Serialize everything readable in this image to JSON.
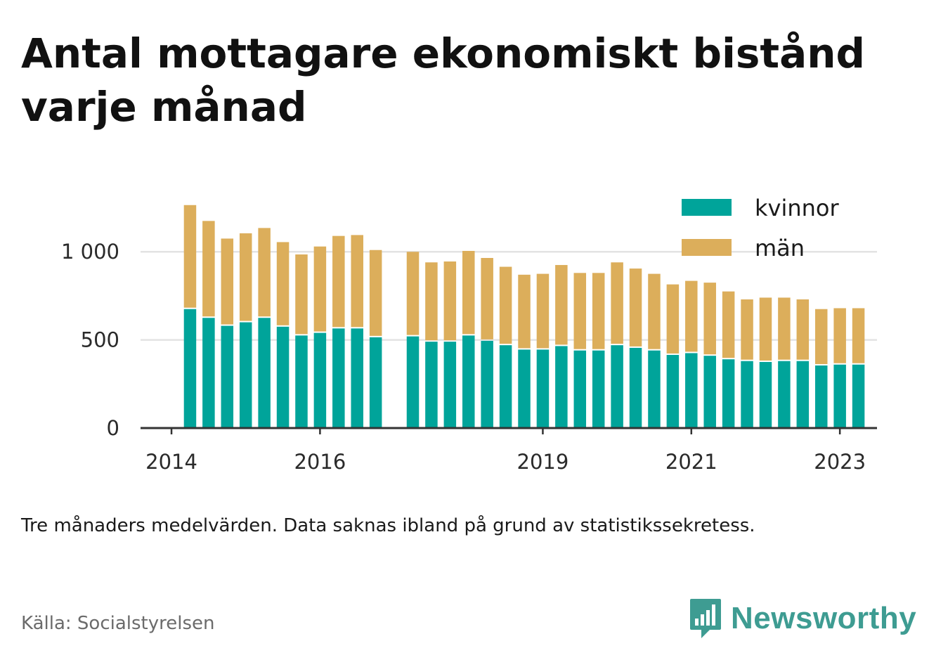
{
  "title": "Antal mottagare ekonomiskt bistånd varje månad",
  "note": "Tre månaders medelvärden. Data saknas ibland på grund av statistikssekretess.",
  "source": "Källa: Socialstyrelsen",
  "logo": {
    "text": "Newsworthy",
    "icon": "bar-chart-speech-bubble-icon"
  },
  "chart_data": {
    "type": "bar",
    "stacked": true,
    "title": "Antal mottagare ekonomiskt bistånd varje månad",
    "xlabel": "",
    "ylabel": "",
    "ylim": [
      0,
      1300
    ],
    "y_ticks": [
      {
        "value": 0,
        "label": "0"
      },
      {
        "value": 500,
        "label": "500"
      },
      {
        "value": 1000,
        "label": "1 000"
      }
    ],
    "x_ticks": [
      {
        "value": "2014-01",
        "label": "2014"
      },
      {
        "value": "2016-01",
        "label": "2016"
      },
      {
        "value": "2019-01",
        "label": "2019"
      },
      {
        "value": "2021-01",
        "label": "2021"
      },
      {
        "value": "2023-01",
        "label": "2023"
      }
    ],
    "x_range": [
      "2013-08",
      "2023-07"
    ],
    "grid": "horizontal",
    "legend": "top-right",
    "colors": {
      "kvinnor": "#00a49a",
      "man": "#dcae5b",
      "axis": "#333333",
      "grid": "#e3e3e3"
    },
    "x": [
      "2014-04",
      "2014-07",
      "2014-10",
      "2015-01",
      "2015-04",
      "2015-07",
      "2015-10",
      "2016-01",
      "2016-04",
      "2016-07",
      "2016-10",
      "2017-04",
      "2017-07",
      "2017-10",
      "2018-01",
      "2018-04",
      "2018-07",
      "2018-10",
      "2019-01",
      "2019-04",
      "2019-07",
      "2019-10",
      "2020-01",
      "2020-04",
      "2020-07",
      "2020-10",
      "2021-01",
      "2021-04",
      "2021-07",
      "2021-10",
      "2022-01",
      "2022-04",
      "2022-07",
      "2022-10",
      "2023-01",
      "2023-04"
    ],
    "series": [
      {
        "name": "kvinnor",
        "color": "#00a49a",
        "values": [
          675,
          625,
          580,
          600,
          625,
          575,
          525,
          540,
          565,
          565,
          515,
          520,
          490,
          490,
          525,
          495,
          470,
          445,
          445,
          465,
          440,
          440,
          470,
          455,
          440,
          415,
          425,
          410,
          390,
          380,
          375,
          380,
          380,
          355,
          360,
          360
        ]
      },
      {
        "name": "män",
        "color": "#dcae5b",
        "values": [
          590,
          550,
          495,
          505,
          510,
          480,
          460,
          490,
          525,
          530,
          495,
          480,
          450,
          455,
          480,
          470,
          445,
          425,
          430,
          460,
          440,
          440,
          470,
          450,
          435,
          400,
          410,
          415,
          385,
          350,
          365,
          360,
          350,
          320,
          320,
          320
        ]
      }
    ]
  }
}
